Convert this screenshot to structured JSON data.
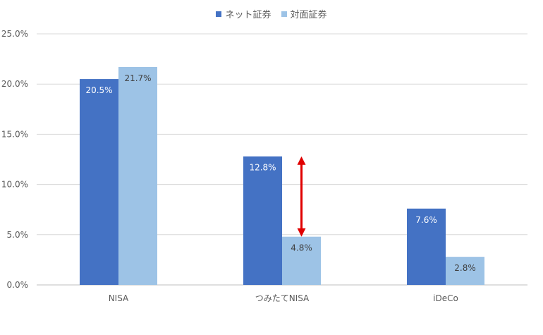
{
  "chart_data": {
    "type": "bar",
    "categories": [
      "NISA",
      "つみたてNISA",
      "iDeCo"
    ],
    "series": [
      {
        "name": "ネット証券",
        "values": [
          20.5,
          12.8,
          7.6
        ],
        "labels": [
          "20.5%",
          "12.8%",
          "7.6%"
        ],
        "color": "#4472C4",
        "label_color": "#ffffff"
      },
      {
        "name": "対面証券",
        "values": [
          21.7,
          4.8,
          2.8
        ],
        "labels": [
          "21.7%",
          "4.8%",
          "2.8%"
        ],
        "color": "#9DC3E6",
        "label_color": "#404040"
      }
    ],
    "ylim": [
      0,
      25
    ],
    "yticks": [
      0,
      5,
      10,
      15,
      20,
      25
    ],
    "ytick_labels": [
      "0.0%",
      "5.0%",
      "10.0%",
      "15.0%",
      "20.0%",
      "25.0%"
    ],
    "grid": true,
    "legend_position": "top-center",
    "annotations": [
      {
        "type": "double-arrow",
        "category": "つみたてNISA",
        "from": 12.8,
        "to": 4.8,
        "color": "#E00000"
      }
    ]
  }
}
